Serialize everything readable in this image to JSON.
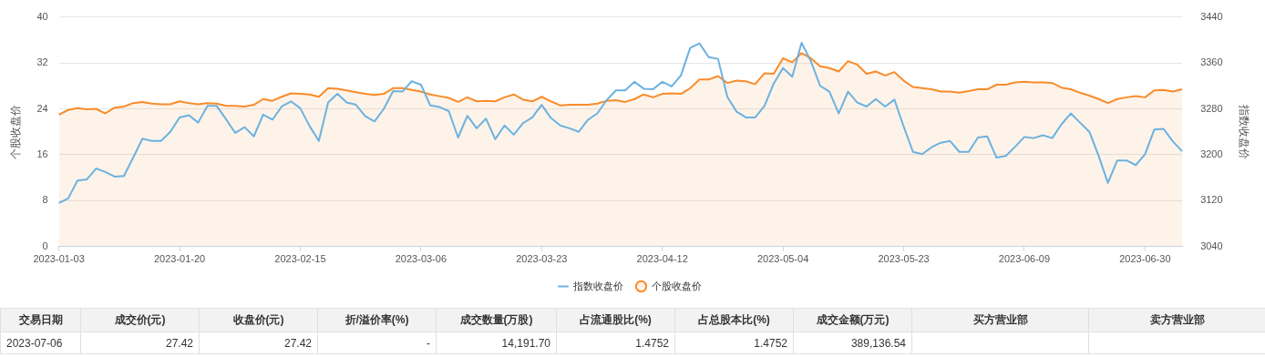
{
  "chart_data": [
    {
      "type": "line",
      "ylabel": "个股收盘价",
      "y2label": "指数收盘价",
      "categories": [
        "2023-01-03",
        null,
        null,
        null,
        null,
        null,
        null,
        null,
        null,
        null,
        null,
        null,
        null,
        "2023-01-20",
        null,
        null,
        null,
        null,
        null,
        null,
        null,
        null,
        null,
        null,
        null,
        null,
        "2023-02-15",
        null,
        null,
        null,
        null,
        null,
        null,
        null,
        null,
        null,
        null,
        null,
        null,
        "2023-03-06",
        null,
        null,
        null,
        null,
        null,
        null,
        null,
        null,
        null,
        null,
        null,
        null,
        "2023-03-23",
        null,
        null,
        null,
        null,
        null,
        null,
        null,
        null,
        null,
        null,
        null,
        null,
        "2023-04-12",
        null,
        null,
        null,
        null,
        null,
        null,
        null,
        null,
        null,
        null,
        null,
        null,
        "2023-05-04",
        null,
        null,
        null,
        null,
        null,
        null,
        null,
        null,
        null,
        null,
        null,
        null,
        "2023-05-23",
        null,
        null,
        null,
        null,
        null,
        null,
        null,
        null,
        null,
        null,
        null,
        null,
        "2023-06-09",
        null,
        null,
        null,
        null,
        null,
        null,
        null,
        null,
        null,
        null,
        null,
        null,
        "2023-06-30",
        null,
        null,
        null,
        null
      ],
      "series": [
        {
          "name": "指数收盘价",
          "type": "line",
          "axis": "y2",
          "color": "#6cb2e0",
          "values": [
            3116,
            3124,
            3155,
            3157,
            3176,
            3170,
            3162,
            3163,
            3195,
            3228,
            3224,
            3224,
            3240,
            3265,
            3269,
            3256,
            3285,
            3285,
            3262,
            3238,
            3248,
            3232,
            3270,
            3261,
            3284,
            3293,
            3281,
            3250,
            3224,
            3291,
            3306,
            3291,
            3287,
            3267,
            3258,
            3280,
            3311,
            3310,
            3328,
            3322,
            3286,
            3283,
            3276,
            3230,
            3268,
            3246,
            3263,
            3227,
            3251,
            3235,
            3255,
            3265,
            3287,
            3264,
            3251,
            3246,
            3240,
            3261,
            3272,
            3295,
            3312,
            3312,
            3327,
            3315,
            3314,
            3327,
            3319,
            3338,
            3386,
            3394,
            3370,
            3367,
            3301,
            3275,
            3265,
            3265,
            3285,
            3324,
            3351,
            3336,
            3395,
            3363,
            3320,
            3310,
            3272,
            3310,
            3291,
            3284,
            3297,
            3284,
            3296,
            3249,
            3205,
            3201,
            3213,
            3221,
            3224,
            3205,
            3205,
            3230,
            3232,
            3195,
            3198,
            3214,
            3231,
            3229,
            3234,
            3229,
            3253,
            3272,
            3256,
            3240,
            3198,
            3151,
            3190,
            3190,
            3182,
            3201,
            3244,
            3245,
            3223,
            3206
          ]
        },
        {
          "name": "个股收盘价",
          "type": "area",
          "color": "#f98c2b",
          "values": [
            23.0,
            23.8,
            24.1,
            23.9,
            24.0,
            23.2,
            24.2,
            24.4,
            25.0,
            25.2,
            24.9,
            24.8,
            24.8,
            25.3,
            25.0,
            24.8,
            25.0,
            24.9,
            24.5,
            24.5,
            24.4,
            24.7,
            25.7,
            25.4,
            26.1,
            26.7,
            26.6,
            26.5,
            26.1,
            27.6,
            27.5,
            27.2,
            26.9,
            26.6,
            26.4,
            26.6,
            27.6,
            27.6,
            27.3,
            27.0,
            26.5,
            26.2,
            25.9,
            25.2,
            26.0,
            25.3,
            25.4,
            25.3,
            26.0,
            26.5,
            25.6,
            25.3,
            26.1,
            25.3,
            24.6,
            24.7,
            24.7,
            24.7,
            24.9,
            25.4,
            25.5,
            25.2,
            25.7,
            26.5,
            26.0,
            26.6,
            26.7,
            26.6,
            27.6,
            29.1,
            29.1,
            29.7,
            28.5,
            28.9,
            28.8,
            28.3,
            30.2,
            30.1,
            32.8,
            32.1,
            33.7,
            32.8,
            31.4,
            31.1,
            30.5,
            32.3,
            31.7,
            30.1,
            30.5,
            29.8,
            30.4,
            28.9,
            27.8,
            27.6,
            27.4,
            27.0,
            27.0,
            26.8,
            27.1,
            27.4,
            27.4,
            28.2,
            28.2,
            28.6,
            28.7,
            28.6,
            28.6,
            28.5,
            27.7,
            27.4,
            26.8,
            26.3,
            25.7,
            25.0,
            25.7,
            26.0,
            26.2,
            26.0,
            27.2,
            27.3,
            27.0,
            27.4
          ]
        }
      ],
      "ylim": [
        0,
        40
      ],
      "yticks": [
        0,
        8,
        16,
        24,
        32,
        40
      ],
      "y2lim": [
        3040,
        3440
      ],
      "y2ticks": [
        3040,
        3120,
        3200,
        3280,
        3360,
        3440
      ],
      "grid": "y",
      "legend": "bottom",
      "marker": "none"
    },
    {
      "type": "other",
      "categories": [
        "交易日期",
        "成交价(元)",
        "收盘价(元)",
        "折/溢价率(%)",
        "成交数量(万股)",
        "占流通股比(%)",
        "占总股本比(%)",
        "成交金额(万元)",
        "买方营业部",
        "卖方营业部"
      ],
      "cell_labels": [
        [
          "2023-07-06",
          "27.42",
          "27.42",
          "-",
          "14,191.70",
          "1.4752",
          "1.4752",
          "389,136.54",
          null,
          null
        ]
      ]
    }
  ]
}
